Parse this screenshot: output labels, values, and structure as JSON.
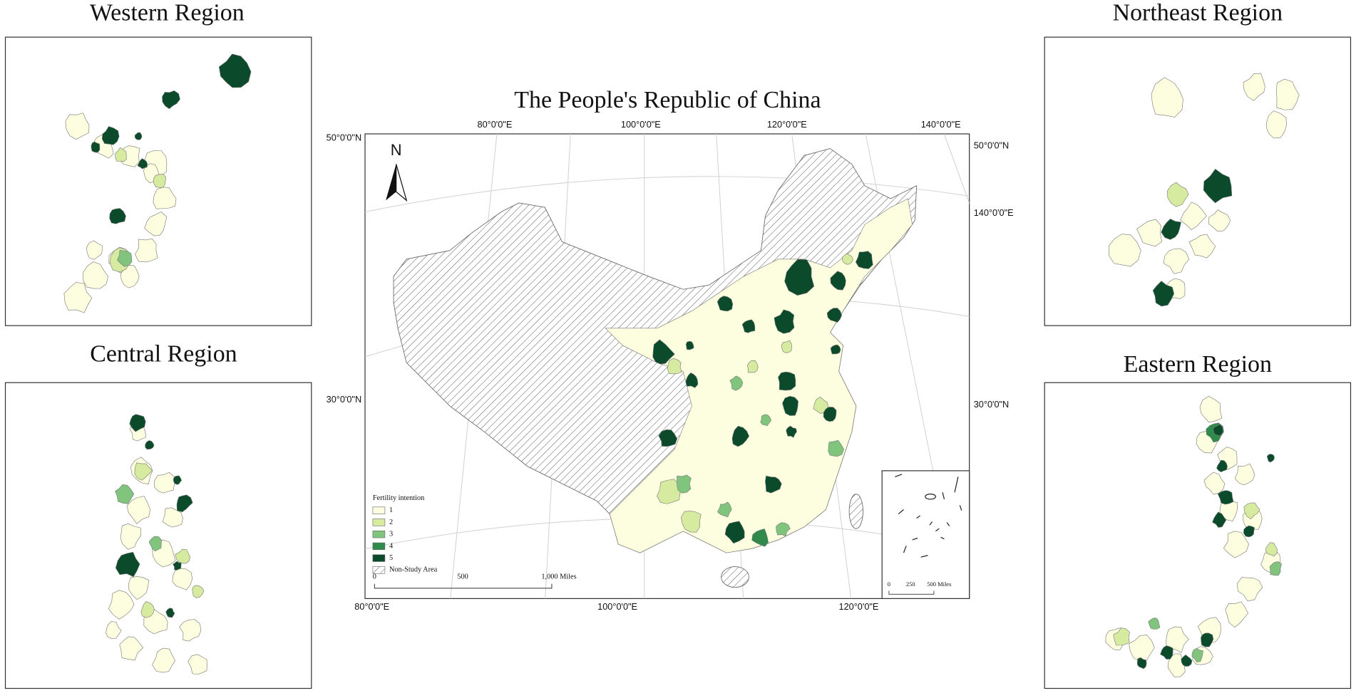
{
  "main_map": {
    "title": "The People's Republic of China",
    "top_labels": [
      "80°0'0\"E",
      "100°0'0\"E",
      "120°0'0\"E",
      "140°0'0\"E"
    ],
    "left_labels": [
      "50°0'0\"N",
      "30°0'0\"N"
    ],
    "right_labels": [
      "50°0'0\"N",
      "140°0'0\"E",
      "30°0'0\"N"
    ],
    "bottom_labels": [
      "80°0'0\"E",
      "100°0'0\"E",
      "120°0'0\"E"
    ],
    "north": "N"
  },
  "legend": {
    "title": "Fertility intention",
    "items": [
      {
        "label": "1",
        "color": "#fdfde0"
      },
      {
        "label": "2",
        "color": "#d6eba0"
      },
      {
        "label": "3",
        "color": "#80c47e"
      },
      {
        "label": "4",
        "color": "#2f8a4b"
      },
      {
        "label": "5",
        "color": "#0b4a2a"
      },
      {
        "label": "Non-Study Area",
        "color": "#ffffff",
        "hatch": true
      }
    ]
  },
  "scale_bar": {
    "labels": [
      "0",
      "500",
      "1,000 Miles"
    ]
  },
  "inset_scale_bar": {
    "labels": [
      "0",
      "250",
      "500 Miles"
    ]
  },
  "panels": [
    {
      "title": "Western Region"
    },
    {
      "title": "Central Region"
    },
    {
      "title": "Northeast Region"
    },
    {
      "title": "Eastern Region"
    }
  ]
}
